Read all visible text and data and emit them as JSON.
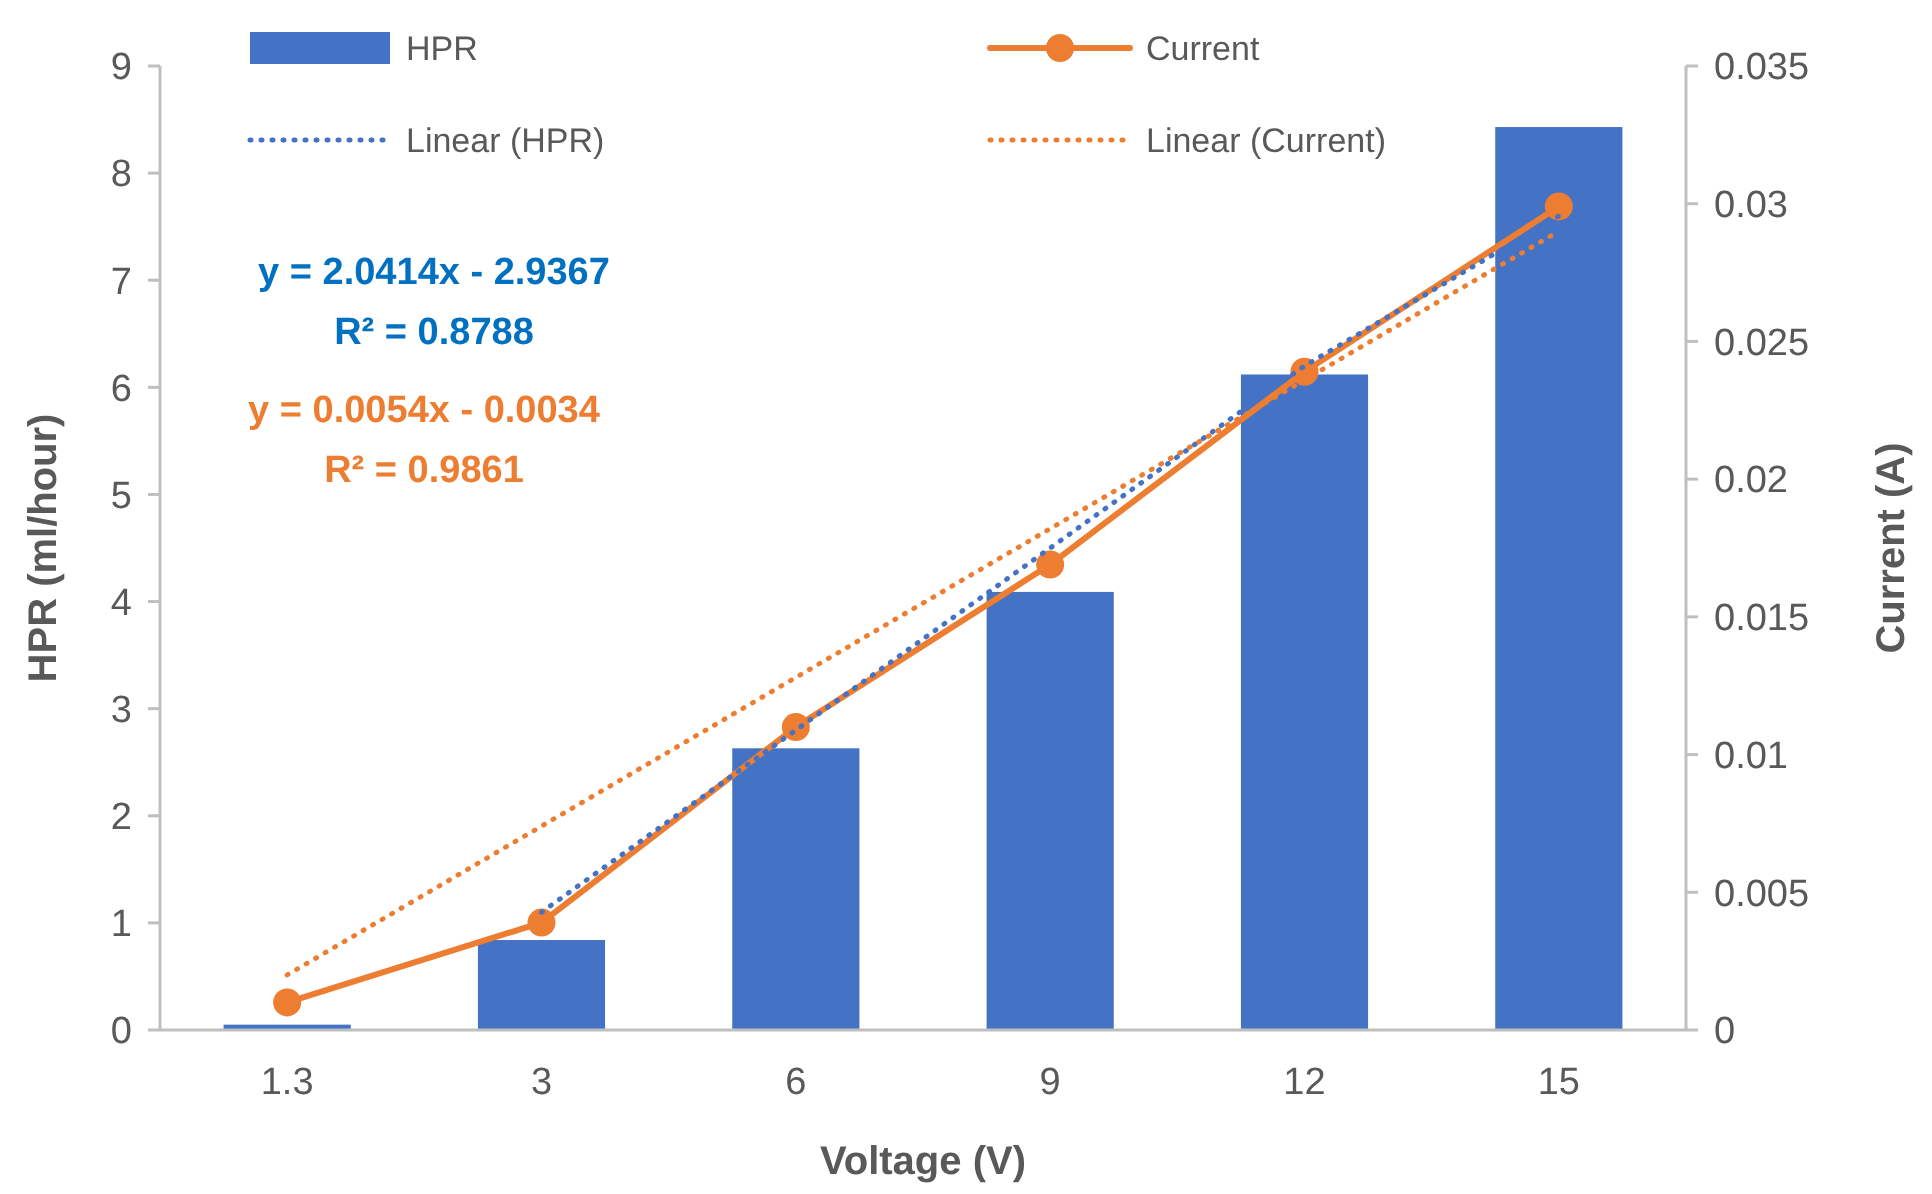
{
  "chart_data": {
    "type": "bar",
    "xlabel": "Voltage (V)",
    "ylabel": "HPR (ml/hour)",
    "y2label": "Current (A)",
    "categories": [
      "1.3",
      "3",
      "6",
      "9",
      "12",
      "15"
    ],
    "series": [
      {
        "name": "HPR",
        "color": "#4472c4",
        "values": [
          0.05,
          0.84,
          2.63,
          4.09,
          6.12,
          8.43
        ]
      },
      {
        "name": "Current",
        "type": "line",
        "axis": "y2",
        "color": "#ed7d31",
        "marker": "circle",
        "values": [
          0.001,
          0.0039,
          0.011,
          0.0169,
          0.0239,
          0.0299
        ]
      },
      {
        "name": "Linear (HPR)",
        "type": "line",
        "color": "#4472c4",
        "line_style": "dotted",
        "values": [
          null,
          1.1,
          2.8,
          4.5,
          6.2,
          7.6
        ]
      },
      {
        "name": "Linear (Current)",
        "type": "line",
        "axis": "y2",
        "color": "#ed7d31",
        "line_style": "dotted",
        "values": [
          0.002,
          0.0074,
          0.0128,
          0.0182,
          0.0236,
          0.029
        ]
      }
    ],
    "ylim": [
      0,
      9
    ],
    "yticks": [
      0,
      1,
      2,
      3,
      4,
      5,
      6,
      7,
      8,
      9
    ],
    "y2lim": [
      0,
      0.035
    ],
    "y2ticks": [
      0,
      0.005,
      0.01,
      0.015,
      0.02,
      0.025,
      0.03,
      0.035
    ],
    "annotations": [
      "y = 2.0414x - 2.9367",
      "R² = 0.8788",
      "y = 0.0054x - 0.0034",
      "R² = 0.9861"
    ],
    "legend": "top",
    "grid": false
  }
}
